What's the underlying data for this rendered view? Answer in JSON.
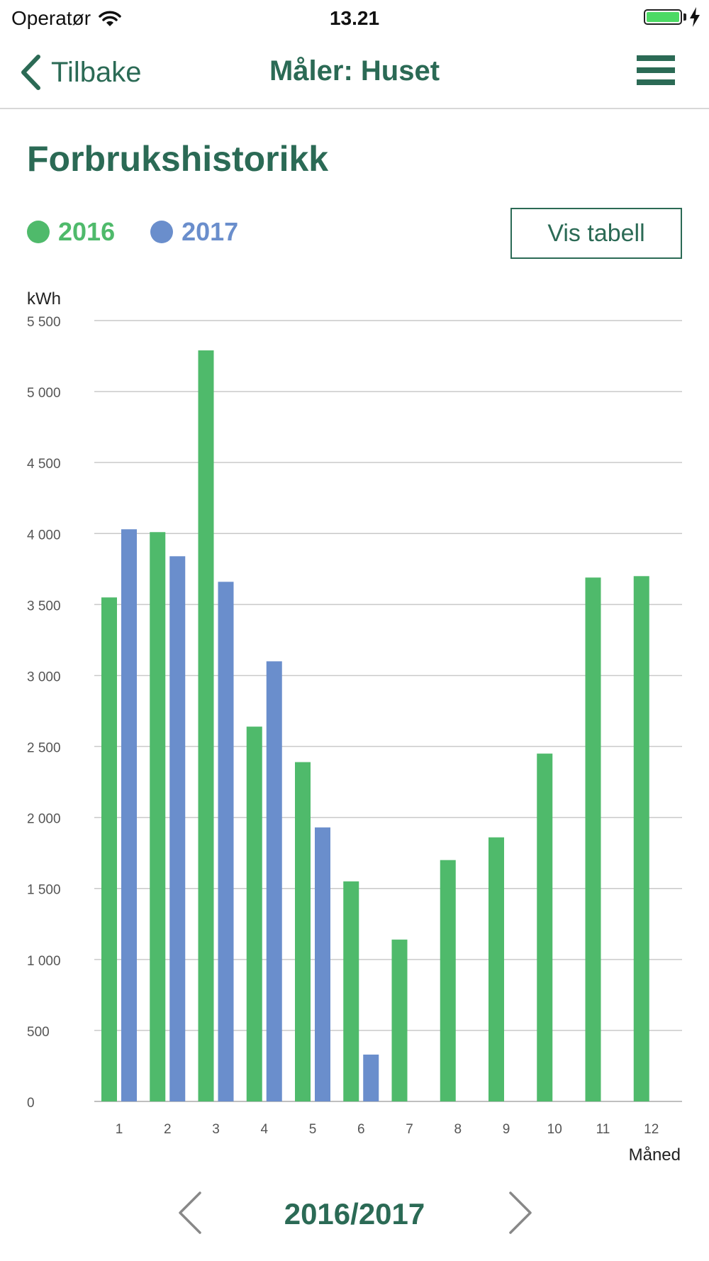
{
  "status_bar": {
    "carrier": "Operatør",
    "time": "13.21"
  },
  "nav": {
    "back_label": "Tilbake",
    "title": "Måler: Huset",
    "menu_icon": "hamburger-menu-icon"
  },
  "page": {
    "title": "Forbrukshistorikk",
    "table_button": "Vis tabell"
  },
  "colors": {
    "accent": "#2b6a55",
    "series_2016": "#4fba6b",
    "series_2017": "#6a8ecc",
    "grid": "#c9c9c9"
  },
  "pager": {
    "label": "2016/2017"
  },
  "chart_data": {
    "type": "bar",
    "ylabel": "kWh",
    "xlabel": "Måned",
    "ylim": [
      0,
      5500
    ],
    "yticks": [
      0,
      500,
      1000,
      1500,
      2000,
      2500,
      3000,
      3500,
      4000,
      4500,
      5000,
      5500
    ],
    "ytick_labels": [
      "0",
      "500",
      "1 000",
      "1 500",
      "2 000",
      "2 500",
      "3 000",
      "3 500",
      "4 000",
      "4 500",
      "5 000",
      "5 500"
    ],
    "grid": true,
    "legend_position": "top-left",
    "categories": [
      "1",
      "2",
      "3",
      "4",
      "5",
      "6",
      "7",
      "8",
      "9",
      "10",
      "11",
      "12"
    ],
    "series": [
      {
        "name": "2016",
        "color": "#4fba6b",
        "values": [
          3550,
          4010,
          5290,
          2640,
          2390,
          1550,
          1140,
          1700,
          1860,
          2450,
          3690,
          3700
        ]
      },
      {
        "name": "2017",
        "color": "#6a8ecc",
        "values": [
          4030,
          3840,
          3660,
          3100,
          1930,
          330,
          null,
          null,
          null,
          null,
          null,
          null
        ]
      }
    ]
  }
}
